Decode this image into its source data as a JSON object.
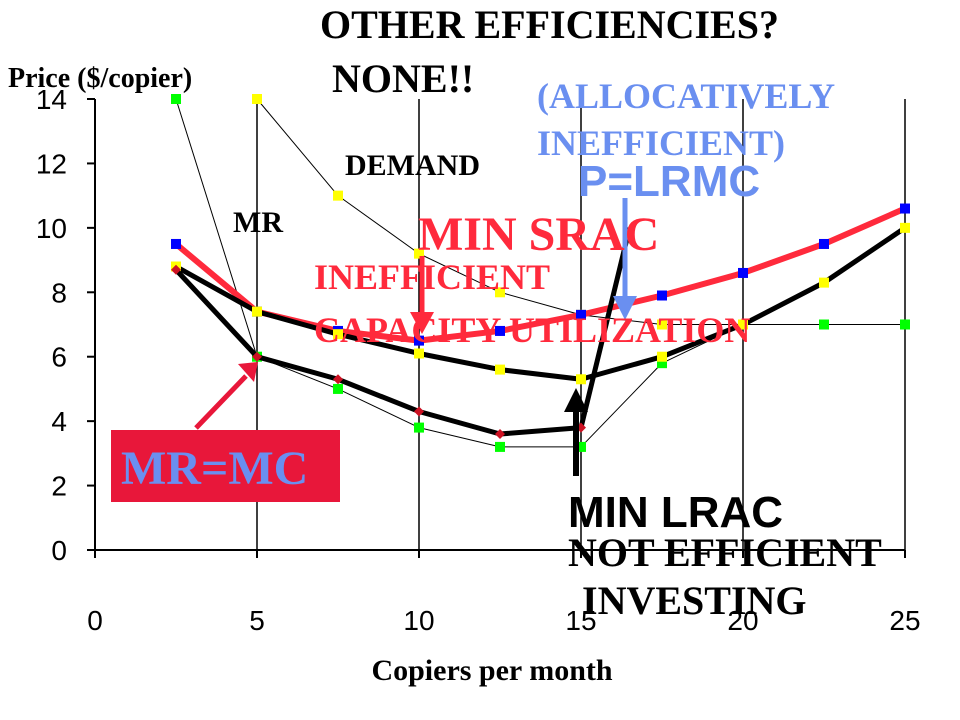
{
  "chart_data": {
    "type": "line",
    "xlabel": "Copiers per month",
    "ylabel": "Price ($/copier)",
    "xlim": [
      0,
      25
    ],
    "ylim": [
      0,
      14
    ],
    "xticks": [
      "0",
      "5",
      "10",
      "15",
      "20",
      "25"
    ],
    "yticks": [
      "0",
      "2",
      "4",
      "6",
      "8",
      "10",
      "12",
      "14"
    ],
    "grid": "vertical",
    "series": [
      {
        "key": "demand",
        "color": "#000000",
        "marker_color": "#FFFF00",
        "marker": "square",
        "width": 1,
        "x": [
          5,
          7.5,
          10,
          12.5,
          15,
          17.5,
          20,
          25
        ],
        "y": [
          14,
          11,
          9.2,
          8,
          7.3,
          7,
          7,
          7
        ]
      },
      {
        "key": "mr",
        "color": "#000000",
        "marker_color": "#00FF00",
        "marker": "square",
        "width": 1,
        "x": [
          2.5,
          5,
          7.5,
          10,
          12.5,
          15,
          17.5,
          20,
          22.5,
          25
        ],
        "y": [
          14,
          6,
          5,
          3.8,
          3.2,
          3.2,
          5.8,
          7,
          7,
          7
        ]
      },
      {
        "key": "lrac",
        "color": "#FF2A3C",
        "marker_color": "#0000FF",
        "marker": "square",
        "width": 6,
        "x": [
          2.5,
          5,
          7.5,
          10,
          12.5,
          15,
          17.5,
          20,
          22.5,
          25
        ],
        "y": [
          9.5,
          7.4,
          6.8,
          6.5,
          6.8,
          7.3,
          7.9,
          8.6,
          9.5,
          10.6
        ]
      },
      {
        "key": "srac",
        "color": "#000000",
        "marker_color": "#FFFF00",
        "marker": "square",
        "width": 5,
        "x": [
          2.5,
          5,
          7.5,
          10,
          12.5,
          15,
          17.5,
          20,
          22.5,
          25
        ],
        "y": [
          8.8,
          7.4,
          6.7,
          6.1,
          5.6,
          5.3,
          6,
          7,
          8.3,
          10
        ]
      },
      {
        "key": "srmc",
        "color": "#000000",
        "marker_color": "#CC1122",
        "marker": "diamond",
        "width": 5,
        "x": [
          2.5,
          5,
          7.5,
          10,
          12.5,
          15,
          16.5
        ],
        "y": [
          8.7,
          6,
          5.3,
          4.3,
          3.6,
          3.8,
          10
        ]
      }
    ],
    "annotations": {
      "title_line1": "OTHER EFFICIENCIES?",
      "title_line2": "NONE!!",
      "demand": "DEMAND",
      "mr": "MR",
      "allocative_1": "(ALLOCATIVELY",
      "allocative_2": "INEFFICIENT)",
      "p_lrmc": "P=LRMC",
      "min_srac": "MIN SRAC",
      "inefficient_1": "INEFFICIENT",
      "inefficient_2": "CAPACITY UTILIZATION",
      "mr_mc": "MR=MC",
      "min_lrac": "MIN LRAC",
      "not_efficient_1": "NOT EFFICIENT",
      "not_efficient_2": "INVESTING"
    },
    "colors": {
      "red": "#FF2A3C",
      "mrmc_box": "#E8173A",
      "light_blue": "#6A8FF0",
      "black": "#000000"
    }
  }
}
